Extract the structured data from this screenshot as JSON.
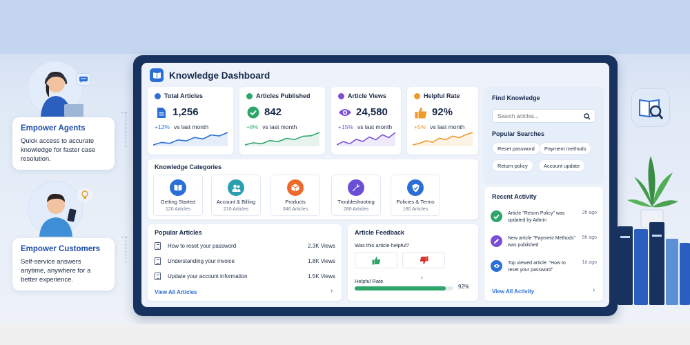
{
  "personas": [
    {
      "title": "Empower Agents",
      "body": "Quick access to accurate knowledge for faster case resolution."
    },
    {
      "title": "Empower Customers",
      "body": "Self-service answers anytime, anywhere for a better experience."
    }
  ],
  "dashboard": {
    "title": "Knowledge Dashboard",
    "stats": [
      {
        "label": "Total Articles",
        "value": "1,256",
        "change": "+12%",
        "vs": "vs last month",
        "color": "#2b6fd6",
        "spark": [
          3,
          4,
          3.6,
          5,
          4.6,
          6,
          5.4,
          7,
          6.6,
          8
        ]
      },
      {
        "label": "Articles Published",
        "value": "842",
        "change": "+8%",
        "vs": "vs last month",
        "color": "#2ea66a",
        "spark": [
          3,
          3.8,
          3.4,
          4.6,
          4.2,
          5.4,
          5,
          6.2,
          6.4,
          7.6
        ]
      },
      {
        "label": "Article Views",
        "value": "24,580",
        "change": "+15%",
        "vs": "vs last month",
        "color": "#7a4fd6",
        "spark": [
          3.2,
          4.4,
          3.6,
          5.2,
          4.4,
          6,
          5,
          6.8,
          5.8,
          7.6
        ]
      },
      {
        "label": "Helpful Rate",
        "value": "92%",
        "change": "+5%",
        "vs": "vs last month",
        "color": "#f09a2a",
        "spark": [
          3,
          3.6,
          4.6,
          4,
          5.6,
          5,
          6.4,
          5.8,
          7,
          7.8
        ]
      }
    ],
    "categories_title": "Knowledge Categories",
    "categories": [
      {
        "name": "Getting Started",
        "count": "120 Articles",
        "color": "#2b6fd6"
      },
      {
        "name": "Account & Billing",
        "count": "210 Articles",
        "color": "#2a9fb0"
      },
      {
        "name": "Products",
        "count": "346 Articles",
        "color": "#ee6a2a"
      },
      {
        "name": "Troubleshooting",
        "count": "280 Articles",
        "color": "#6a4fd6"
      },
      {
        "name": "Policies & Terms",
        "count": "180 Articles",
        "color": "#2b6fd6"
      }
    ],
    "popular": {
      "title": "Popular Articles",
      "items": [
        {
          "title": "How to reset your password",
          "views": "2.3K Views"
        },
        {
          "title": "Understanding your invoice",
          "views": "1.8K Views"
        },
        {
          "title": "Update your account information",
          "views": "1.5K Views"
        }
      ],
      "view_all": "View All Articles"
    },
    "feedback": {
      "title": "Article Feedback",
      "question": "Was this article helpful?",
      "rate_label": "Helpful Rate",
      "rate_value": "92%",
      "rate_fraction": 0.92
    },
    "find": {
      "title": "Find Knowledge",
      "placeholder": "Search articles...",
      "popular_title": "Popular Searches",
      "chips": [
        "Reset password",
        "Payment methods",
        "Return policy",
        "Account update"
      ]
    },
    "activity": {
      "title": "Recent Activity",
      "items": [
        {
          "text": "Article \"Return Policy\" was updated by Admin",
          "time": "2h ago",
          "color": "#2ea66a",
          "icon": "check-icon"
        },
        {
          "text": "New article \"Payment Methods\" was published",
          "time": "5h ago",
          "color": "#7a4fd6",
          "icon": "pencil-icon"
        },
        {
          "text": "Top viewed article: \"How to reset your password\"",
          "time": "1d ago",
          "color": "#2b6fd6",
          "icon": "eye-icon"
        }
      ],
      "view_all": "View All Activity"
    }
  }
}
